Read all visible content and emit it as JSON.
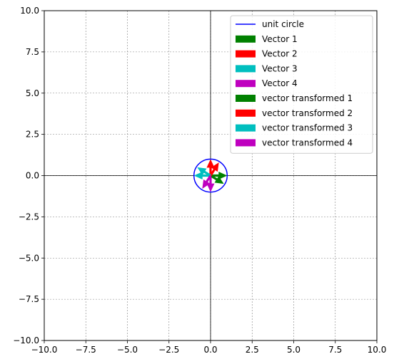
{
  "chart_data": {
    "type": "quiver",
    "xlim": [
      -10,
      10
    ],
    "ylim": [
      -10,
      10
    ],
    "grid": true,
    "legend_position": "top-right",
    "x_ticks": [
      "−10.0",
      "−7.5",
      "−5.0",
      "−2.5",
      "0.0",
      "2.5",
      "5.0",
      "7.5",
      "10.0"
    ],
    "y_ticks": [
      "10.0",
      "7.5",
      "5.0",
      "2.5",
      "0.0",
      "−2.5",
      "−5.0",
      "−7.5",
      "−10.0"
    ],
    "unit_circle": {
      "name": "unit circle",
      "center": [
        0,
        0
      ],
      "radius": 1,
      "color": "#0000ff"
    },
    "vectors": [
      {
        "name": "Vector 1",
        "color": "#008000",
        "start": [
          0,
          0
        ],
        "end": [
          1,
          0
        ]
      },
      {
        "name": "Vector 2",
        "color": "#ff0000",
        "start": [
          0,
          0
        ],
        "end": [
          0,
          1
        ]
      },
      {
        "name": "Vector 3",
        "color": "#00bfbf",
        "start": [
          0,
          0
        ],
        "end": [
          -1,
          0
        ]
      },
      {
        "name": "Vector 4",
        "color": "#bf00bf",
        "start": [
          0,
          0
        ],
        "end": [
          0,
          -1
        ]
      },
      {
        "name": "vector transformed 1",
        "color": "#008000",
        "start": [
          0,
          0
        ],
        "end": [
          0.8,
          -0.5
        ]
      },
      {
        "name": "vector transformed 2",
        "color": "#ff0000",
        "start": [
          0,
          0
        ],
        "end": [
          0.5,
          0.8
        ]
      },
      {
        "name": "vector transformed 3",
        "color": "#00bfbf",
        "start": [
          0,
          0
        ],
        "end": [
          -0.8,
          0.5
        ]
      },
      {
        "name": "vector transformed 4",
        "color": "#bf00bf",
        "start": [
          0,
          0
        ],
        "end": [
          -0.5,
          -0.8
        ]
      }
    ],
    "legend": [
      {
        "label": "unit circle",
        "kind": "line",
        "color": "#0000ff"
      },
      {
        "label": "Vector 1",
        "kind": "patch",
        "color": "#008000"
      },
      {
        "label": "Vector 2",
        "kind": "patch",
        "color": "#ff0000"
      },
      {
        "label": "Vector 3",
        "kind": "patch",
        "color": "#00bfbf"
      },
      {
        "label": "Vector 4",
        "kind": "patch",
        "color": "#bf00bf"
      },
      {
        "label": "vector transformed 1",
        "kind": "patch",
        "color": "#008000"
      },
      {
        "label": "vector transformed 2",
        "kind": "patch",
        "color": "#ff0000"
      },
      {
        "label": "vector transformed 3",
        "kind": "patch",
        "color": "#00bfbf"
      },
      {
        "label": "vector transformed 4",
        "kind": "patch",
        "color": "#bf00bf"
      }
    ]
  }
}
